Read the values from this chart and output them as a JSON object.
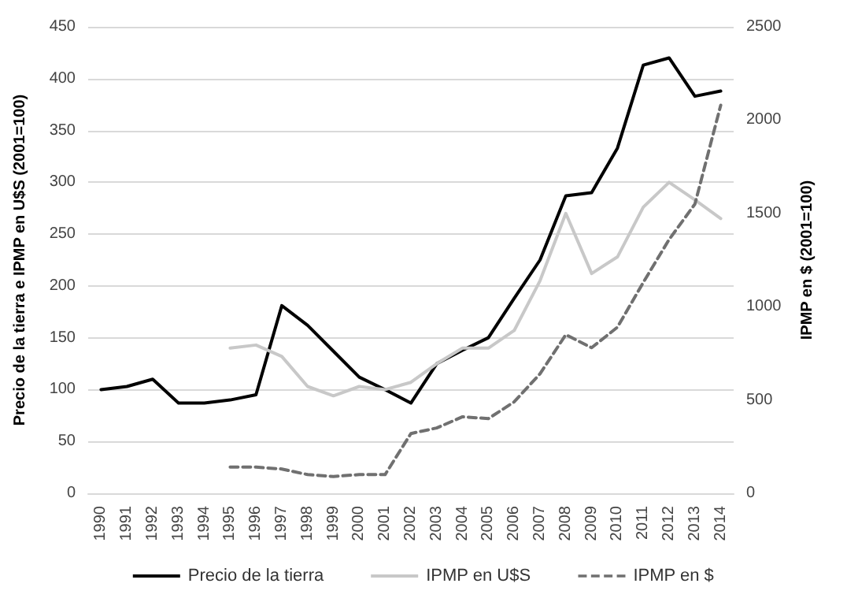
{
  "chart_data": {
    "type": "line",
    "categories": [
      "1990",
      "1991",
      "1992",
      "1993",
      "1994",
      "1995",
      "1996",
      "1997",
      "1998",
      "1999",
      "2000",
      "2001",
      "2002",
      "2003",
      "2004",
      "2005",
      "2006",
      "2007",
      "2008",
      "2009",
      "2010",
      "2011",
      "2012",
      "2013",
      "2014"
    ],
    "ylabel": "Precio de la tierra e IPMP en U$S (2001=100)",
    "y2label": "IPMP en $ (2001=100)",
    "ylim": [
      0,
      450
    ],
    "yticks": [
      0,
      50,
      100,
      150,
      200,
      250,
      300,
      350,
      400,
      450
    ],
    "y2lim": [
      0,
      2500
    ],
    "y2ticks": [
      0,
      500,
      1000,
      1500,
      2000,
      2500
    ],
    "grid": "y",
    "legend": "bottom",
    "marker": "none",
    "series": [
      {
        "name": "Precio de la tierra",
        "color": "#000000",
        "line_style": "solid",
        "values": [
          100,
          103,
          110,
          87,
          87,
          90,
          95,
          181,
          162,
          137,
          112,
          100,
          87,
          125,
          138,
          150,
          188,
          225,
          287,
          290,
          333,
          413,
          420,
          383,
          388
        ]
      },
      {
        "name": "IPMP en U$S",
        "color": "#c8c8c8",
        "line_style": "solid",
        "values": [
          null,
          null,
          null,
          null,
          null,
          140,
          143,
          132,
          103,
          94,
          103,
          100,
          107,
          125,
          140,
          140,
          157,
          205,
          270,
          212,
          228,
          276,
          300,
          283,
          265
        ]
      },
      {
        "name": "IPMP en $",
        "color": "#707070",
        "line_style": "dashed",
        "axis": "y2",
        "values": [
          null,
          null,
          null,
          null,
          null,
          140,
          140,
          130,
          100,
          90,
          100,
          100,
          320,
          350,
          410,
          400,
          490,
          640,
          850,
          780,
          890,
          1130,
          1360,
          1550,
          2080
        ]
      }
    ]
  }
}
